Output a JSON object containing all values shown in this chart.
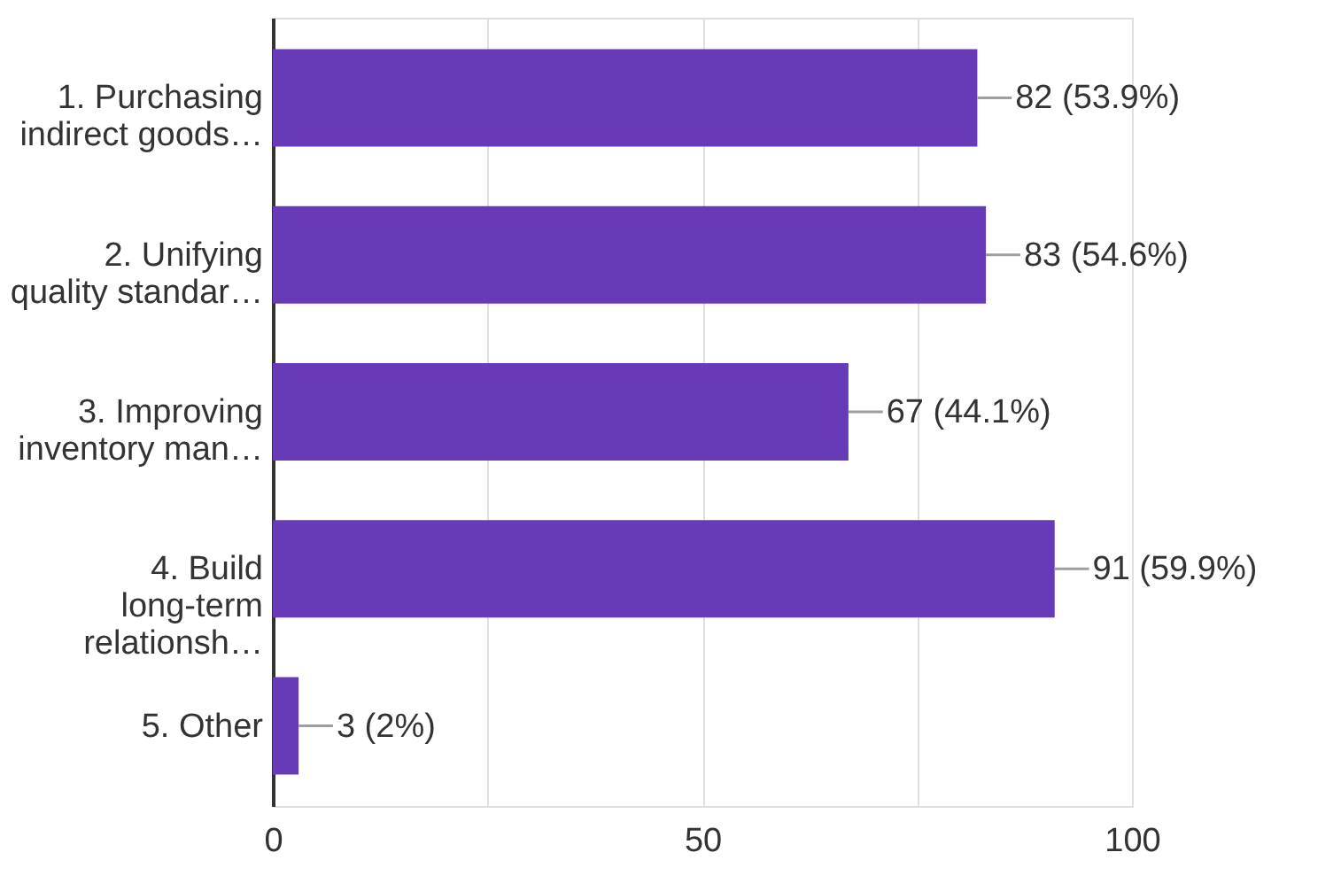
{
  "chart_data": {
    "type": "bar",
    "orientation": "horizontal",
    "categories": [
      "1. Purchasing indirect goods…",
      "2. Unifying quality standar…",
      "3. Improving inventory man…",
      "4. Build long-term relationsh…",
      "5. Other"
    ],
    "values": [
      82,
      83,
      67,
      91,
      3
    ],
    "value_labels": [
      "82 (53.9%)",
      "83 (54.6%)",
      "67 (44.1%)",
      "91 (59.9%)",
      "3 (2%)"
    ],
    "color": "#673ab7",
    "xlim": [
      0,
      100
    ],
    "xticks": [
      0,
      {
        "value": 25,
        "label": null
      },
      50,
      {
        "value": 75,
        "label": null
      },
      100
    ],
    "grid": "x",
    "legend": false
  }
}
